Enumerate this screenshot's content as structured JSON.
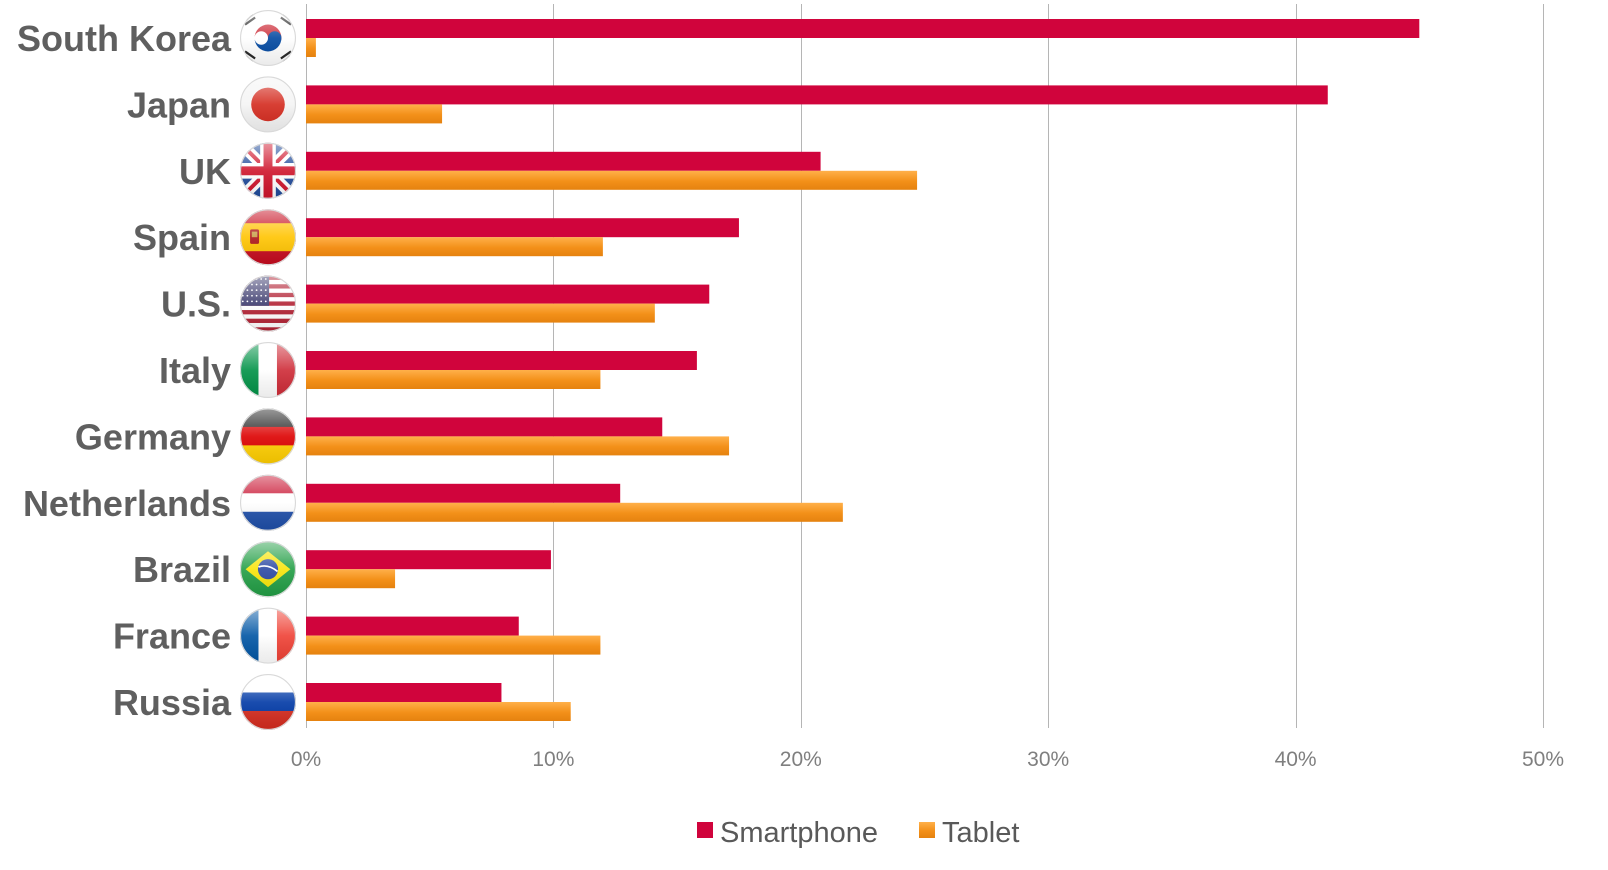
{
  "chart_data": {
    "type": "bar",
    "orientation": "horizontal",
    "categories": [
      "South Korea",
      "Japan",
      "UK",
      "Spain",
      "U.S.",
      "Italy",
      "Germany",
      "Netherlands",
      "Brazil",
      "France",
      "Russia"
    ],
    "category_icons": [
      "south-korea-flag-icon",
      "japan-flag-icon",
      "uk-flag-icon",
      "spain-flag-icon",
      "us-flag-icon",
      "italy-flag-icon",
      "germany-flag-icon",
      "netherlands-flag-icon",
      "brazil-flag-icon",
      "france-flag-icon",
      "russia-flag-icon"
    ],
    "series": [
      {
        "name": "Smartphone",
        "color": "#d0043c",
        "values": [
          0.45,
          0.413,
          0.208,
          0.175,
          0.163,
          0.158,
          0.144,
          0.127,
          0.099,
          0.086,
          0.079
        ]
      },
      {
        "name": "Tablet",
        "color": "#f39019",
        "values": [
          0.004,
          0.055,
          0.247,
          0.12,
          0.141,
          0.119,
          0.171,
          0.217,
          0.036,
          0.119,
          0.107
        ]
      }
    ],
    "xlim": [
      0,
      0.5
    ],
    "x_ticks": [
      {
        "value": 0,
        "label": "0%"
      },
      {
        "value": 0.1,
        "label": "10%"
      },
      {
        "value": 0.2,
        "label": "20%"
      },
      {
        "value": 0.3,
        "label": "30%"
      },
      {
        "value": 0.4,
        "label": "40%"
      },
      {
        "value": 0.5,
        "label": "50%"
      }
    ],
    "grid": "vertical",
    "legend_position": "bottom-center",
    "colors": {
      "grid": "#b5b5b5",
      "category_text": "#5f5f5f",
      "tick_text": "#7f7f7f",
      "legend_text": "#595959"
    }
  }
}
